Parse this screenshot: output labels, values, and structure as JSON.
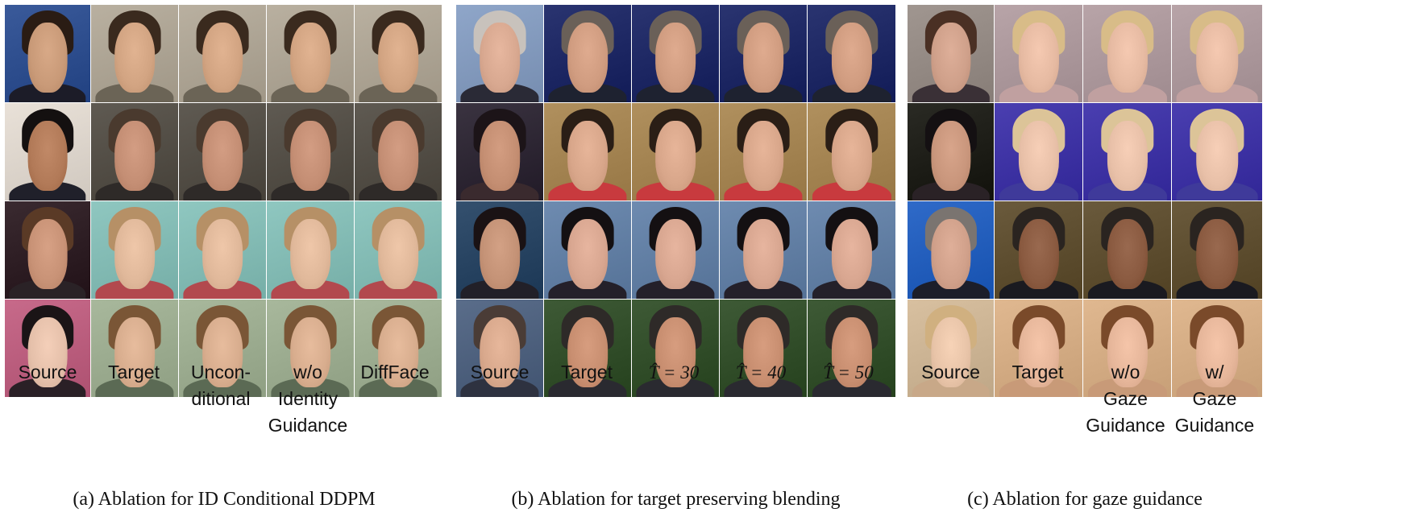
{
  "panels": [
    {
      "caption": "(a) Ablation for ID Conditional DDPM",
      "columns": [
        "Source",
        "Target",
        "Uncon-\nditional",
        "w/o\nIdentity\nGuidance",
        "DiffFace"
      ]
    },
    {
      "caption": "(b) Ablation for target preserving blending",
      "columns": [
        "Source",
        "Target",
        "T̂ = 30",
        "T̂ = 40",
        "T̂ = 50"
      ]
    },
    {
      "caption": "(c) Ablation for gaze guidance",
      "columns": [
        "Source",
        "Target",
        "w/o\nGaze\nGuidance",
        "w/\nGaze\nGuidance"
      ]
    }
  ],
  "palette": {
    "a": [
      {
        "bg": "#3a5a9a",
        "skin": "#c99a78",
        "hair": "#2a1c14",
        "body": "#1c1c28",
        "bg2": "#b9b0a0",
        "skin2": "#d2a482",
        "hair2": "#3a2a1e",
        "body2": "#6b6456"
      },
      {
        "bg": "#e9e1d8",
        "skin": "#b27a58",
        "hair": "#141010",
        "body": "#20202a",
        "bg2": "#5f5a52",
        "skin2": "#c48e74",
        "hair2": "#4a3a2e",
        "body2": "#2e2a28"
      },
      {
        "bg": "#3a2a30",
        "skin": "#c89276",
        "hair": "#5a3a26",
        "body": "#2a2226",
        "bg2": "#8fc7c0",
        "skin2": "#e0b89a",
        "hair2": "#b69066",
        "body2": "#b2494e"
      },
      {
        "bg": "#c76a8a",
        "skin": "#e5c0aa",
        "hair": "#1a1416",
        "body": "#2a2026",
        "bg2": "#a8b89c",
        "skin2": "#d8ad8e",
        "hair2": "#7a5636",
        "body2": "#5b6a54"
      }
    ],
    "b": [
      {
        "bg": "#8fa6c9",
        "skin": "#d8a890",
        "hair": "#c8c2bc",
        "body": "#2a2a36",
        "bg2": "#2a3470",
        "skin2": "#d09c80",
        "hair2": "#6a6058",
        "body2": "#1e2230"
      },
      {
        "bg": "#3a3340",
        "skin": "#c48e72",
        "hair": "#1c1418",
        "body": "#3a2a2e",
        "bg2": "#b0905e",
        "skin2": "#d8a68a",
        "hair2": "#2a1e16",
        "body2": "#c83a3e"
      },
      {
        "bg": "#34506e",
        "skin": "#c49276",
        "hair": "#1a1214",
        "body": "#222028",
        "bg2": "#6e8bb0",
        "skin2": "#d8a690",
        "hair2": "#141012",
        "body2": "#24202a"
      },
      {
        "bg": "#5a6d8a",
        "skin": "#d8a88c",
        "hair": "#4a3c36",
        "body": "#2e3240",
        "bg2": "#3e5a36",
        "skin2": "#c88e70",
        "hair2": "#2e2a28",
        "body2": "#2a2a30"
      }
    ],
    "c": [
      {
        "bg": "#a09690",
        "skin": "#cfa08a",
        "hair": "#4a3024",
        "body": "#3a3036",
        "bg2": "#b8a4a8",
        "skin2": "#e6baa2",
        "hair2": "#d8bc88",
        "body2": "#c0a0a0"
      },
      {
        "bg": "#2a2a24",
        "skin": "#c9967c",
        "hair": "#141012",
        "body": "#2a2226",
        "bg2": "#4a3fb0",
        "skin2": "#e8c0a8",
        "hair2": "#dcc498",
        "body2": "#3f3a9a"
      },
      {
        "bg": "#2f6ac8",
        "skin": "#d0a08a",
        "hair": "#7a7470",
        "body": "#1c1e2a",
        "bg2": "#6a5a3c",
        "skin2": "#8a5a40",
        "hair2": "#2a2420",
        "body2": "#1a1a20"
      },
      {
        "bg": "#d8c0a0",
        "skin": "#e8c4a8",
        "hair": "#d0b080",
        "body": "#c8a888",
        "bg2": "#e0b890",
        "skin2": "#e6b69a",
        "hair2": "#7a4a2a",
        "body2": "#c89a78"
      }
    ]
  }
}
